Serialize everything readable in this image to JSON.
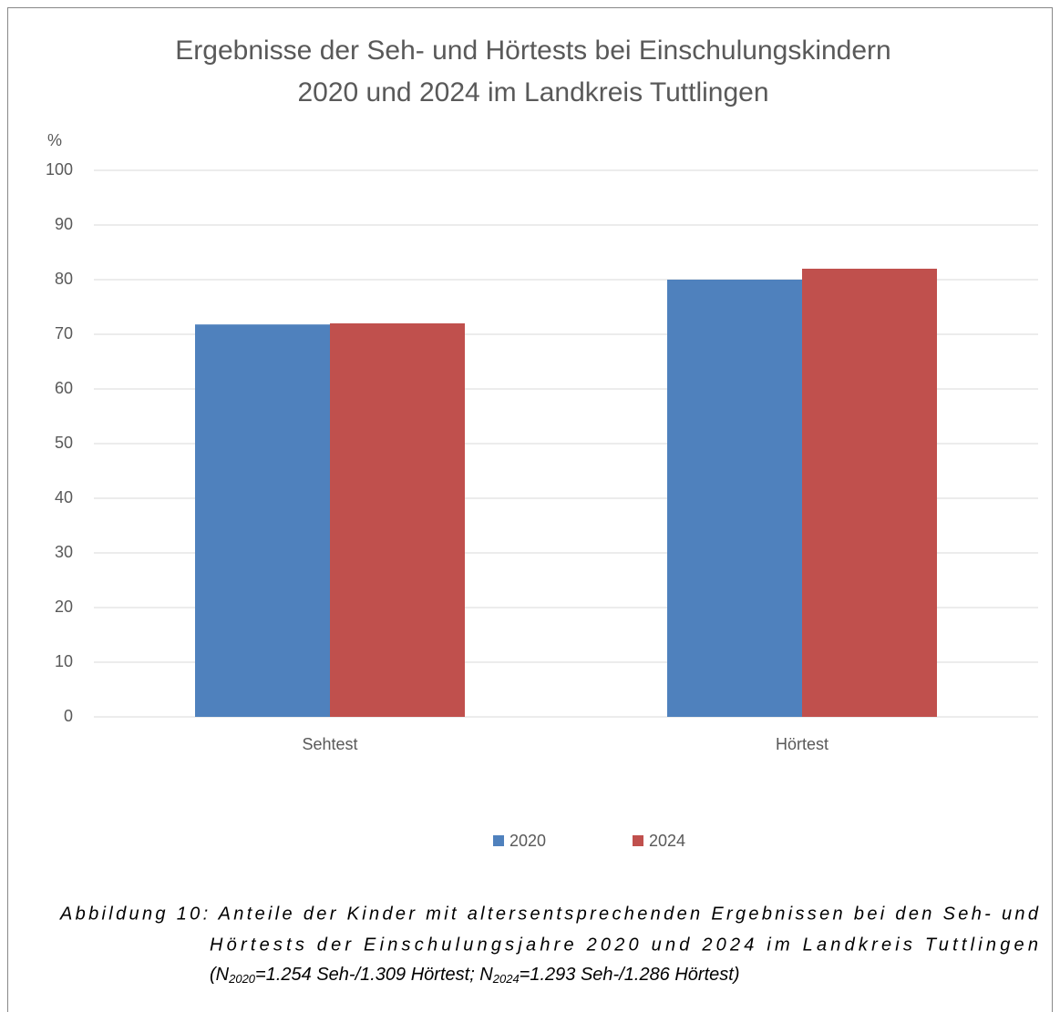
{
  "chart_data": {
    "type": "bar",
    "title": [
      "Ergebnisse der Seh- und Hörtests bei Einschulungskindern",
      "2020 und 2024 im Landkreis Tuttlingen"
    ],
    "y_label": "%",
    "categories": [
      "Sehtest",
      "Hörtest"
    ],
    "series": [
      {
        "name": "2020",
        "color": "#4f81bd",
        "values": [
          71.8,
          80
        ]
      },
      {
        "name": "2024",
        "color": "#c0504d",
        "values": [
          72,
          82
        ]
      }
    ],
    "ylim": [
      0,
      100
    ],
    "yticks": [
      0,
      10,
      20,
      30,
      40,
      50,
      60,
      70,
      80,
      90,
      100
    ],
    "grid": true,
    "legend": "bottom"
  },
  "caption": {
    "lines": [
      "Abbildung 10: Anteile der Kinder mit altersentsprechenden Ergebnissen bei den Seh- und",
      "Hörtests der Einschulungsjahre 2020 und 2024 im Landkreis Tuttlingen"
    ],
    "last_line": [
      "(N",
      "2020",
      "=1.254 Seh-/1.309 Hörtest; N",
      "2024",
      "=1.293 Seh-/1.286 Hörtest)"
    ]
  }
}
